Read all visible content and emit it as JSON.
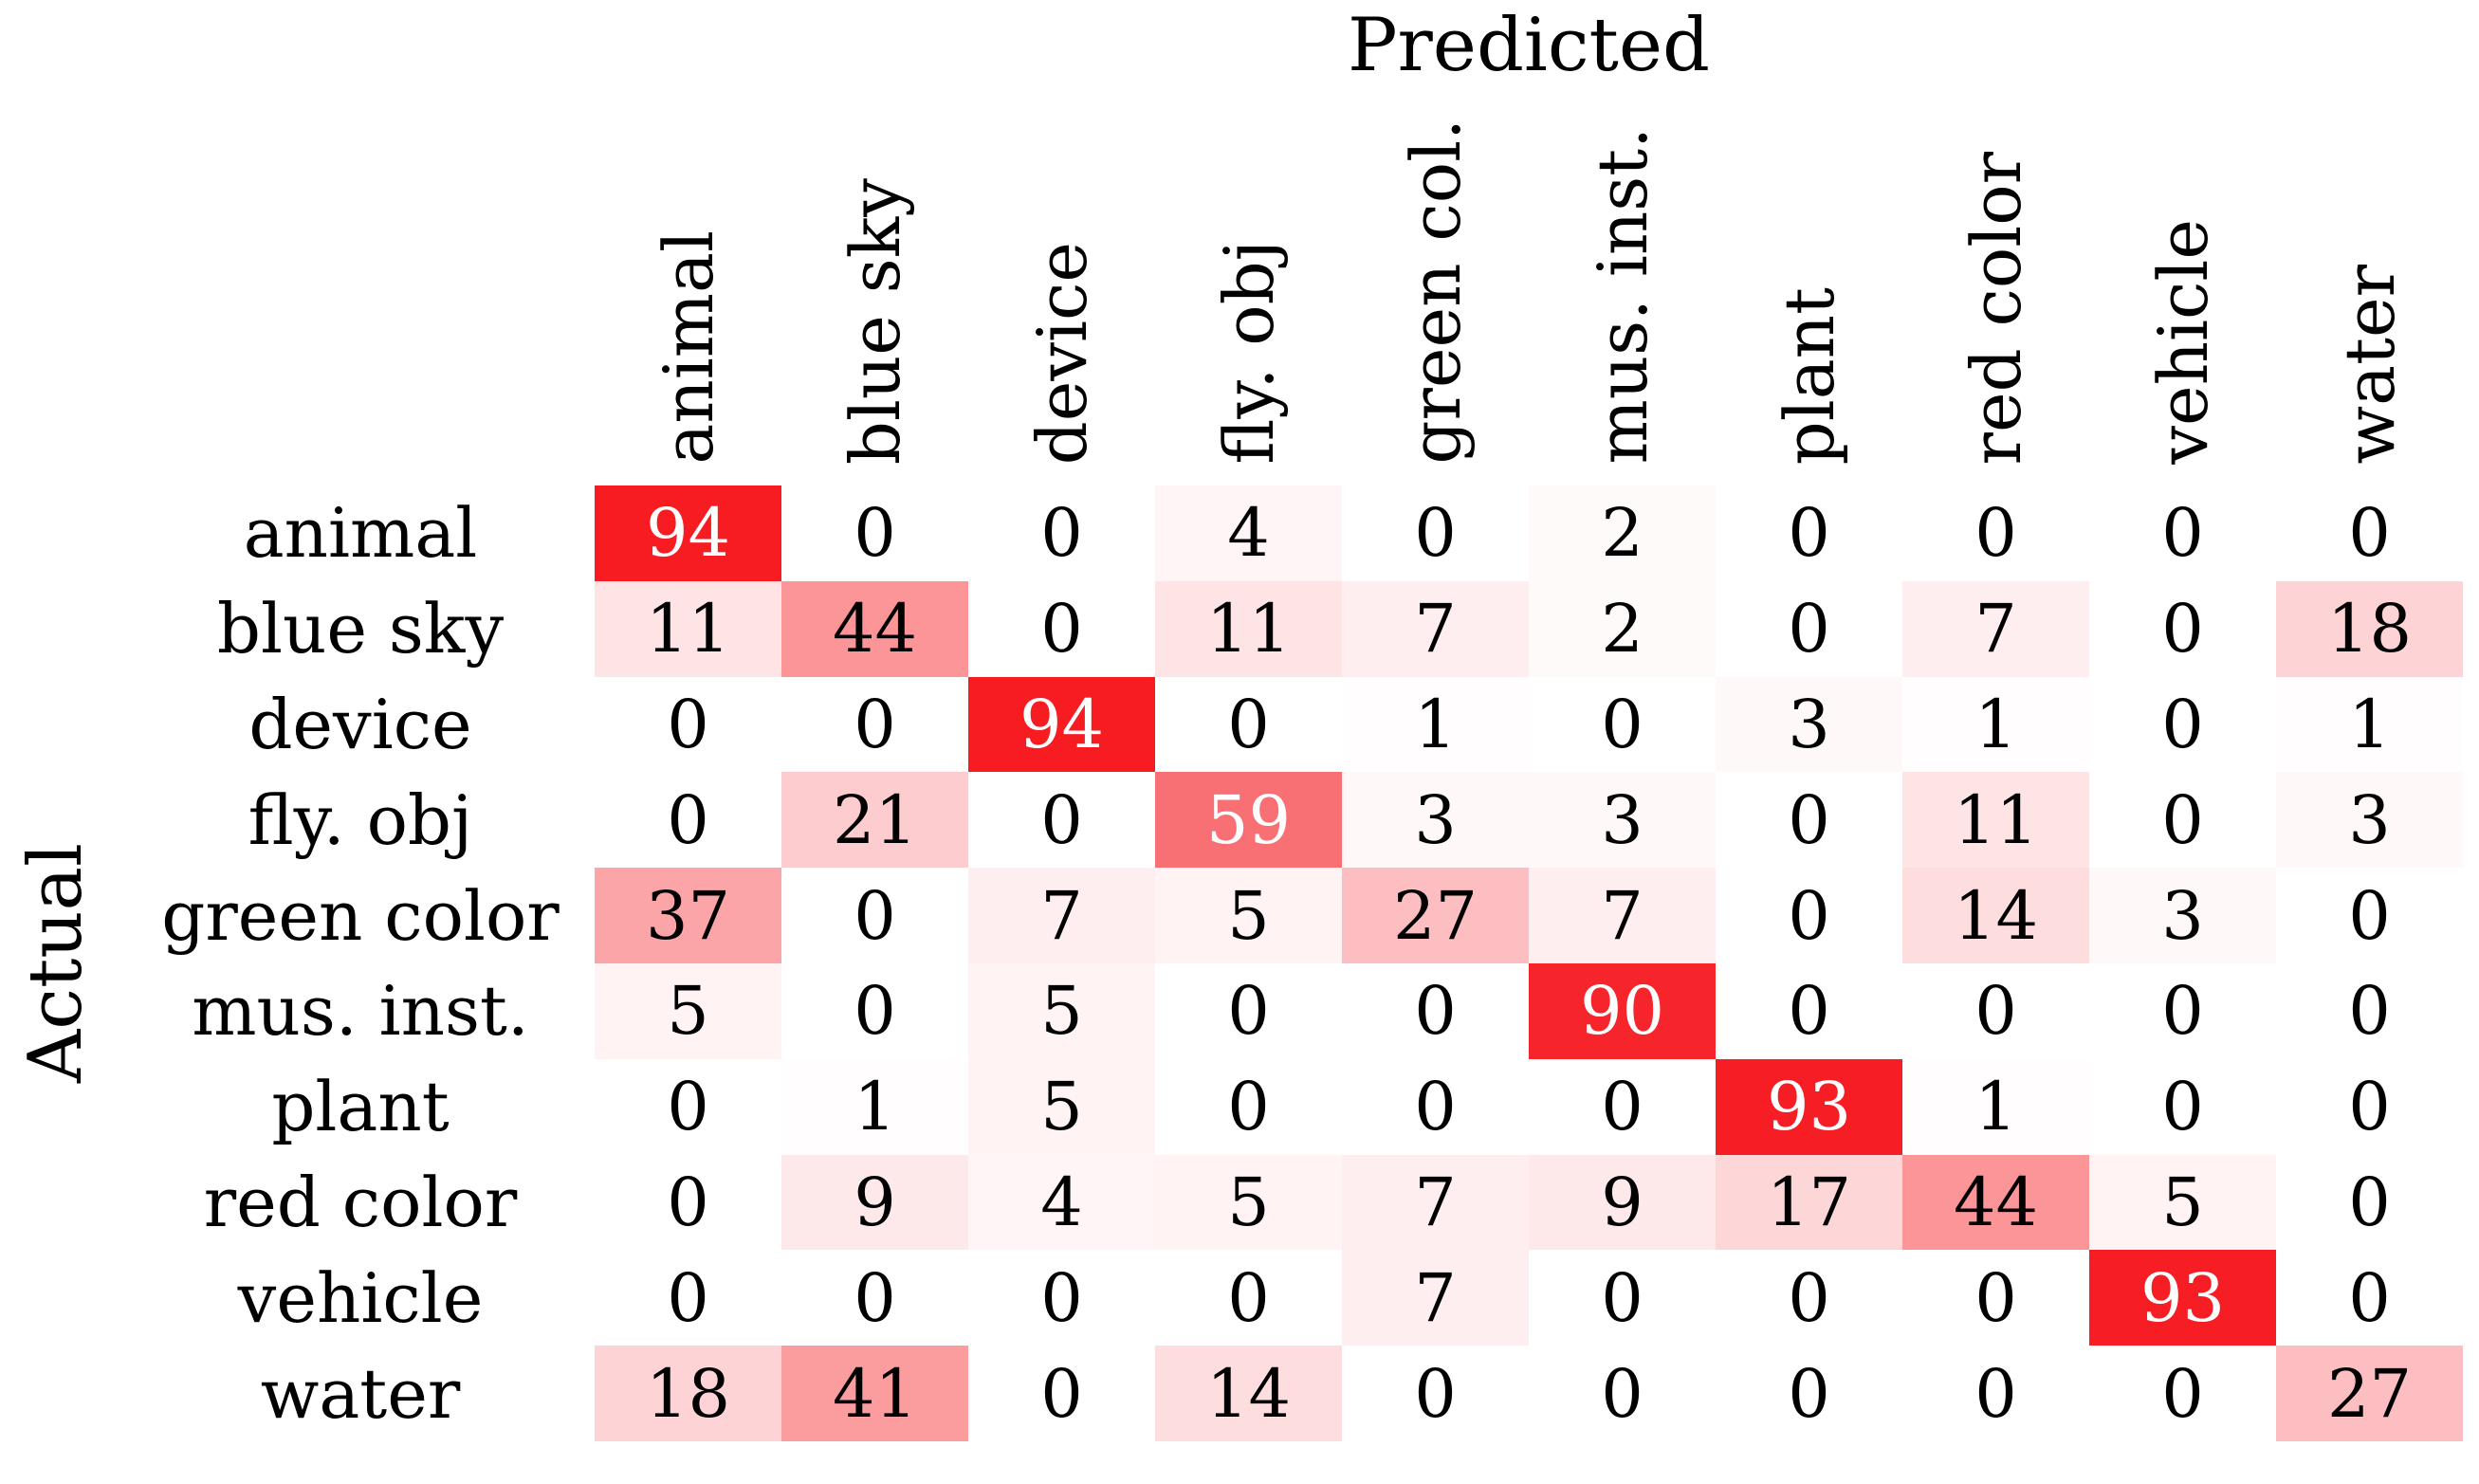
{
  "colors": {
    "max_red": "#f50d14",
    "background": "#ffffff",
    "high_value_text": "#ffffff",
    "low_value_text": "#000000"
  },
  "chart_data": {
    "type": "heatmap",
    "title": "Predicted",
    "ylabel": "Actual",
    "colormap": "white-to-red",
    "value_range": [
      0,
      100
    ],
    "white_text_threshold": 50,
    "legend": "none",
    "grid": false,
    "columns": [
      "animal",
      "blue sky",
      "device",
      "fly. obj",
      "green col.",
      "mus. inst.",
      "plant",
      "red color",
      "vehicle",
      "water"
    ],
    "rows": [
      "animal",
      "blue sky",
      "device",
      "fly. obj",
      "green color",
      "mus. inst.",
      "plant",
      "red color",
      "vehicle",
      "water"
    ],
    "values": [
      [
        94,
        0,
        0,
        4,
        0,
        2,
        0,
        0,
        0,
        0
      ],
      [
        11,
        44,
        0,
        11,
        7,
        2,
        0,
        7,
        0,
        18
      ],
      [
        0,
        0,
        94,
        0,
        1,
        0,
        3,
        1,
        0,
        1
      ],
      [
        0,
        21,
        0,
        59,
        3,
        3,
        0,
        11,
        0,
        3
      ],
      [
        37,
        0,
        7,
        5,
        27,
        7,
        0,
        14,
        3,
        0
      ],
      [
        5,
        0,
        5,
        0,
        0,
        90,
        0,
        0,
        0,
        0
      ],
      [
        0,
        1,
        5,
        0,
        0,
        0,
        93,
        1,
        0,
        0
      ],
      [
        0,
        9,
        4,
        5,
        7,
        9,
        17,
        44,
        5,
        0
      ],
      [
        0,
        0,
        0,
        0,
        7,
        0,
        0,
        0,
        93,
        0
      ],
      [
        18,
        41,
        0,
        14,
        0,
        0,
        0,
        0,
        0,
        27
      ]
    ]
  }
}
